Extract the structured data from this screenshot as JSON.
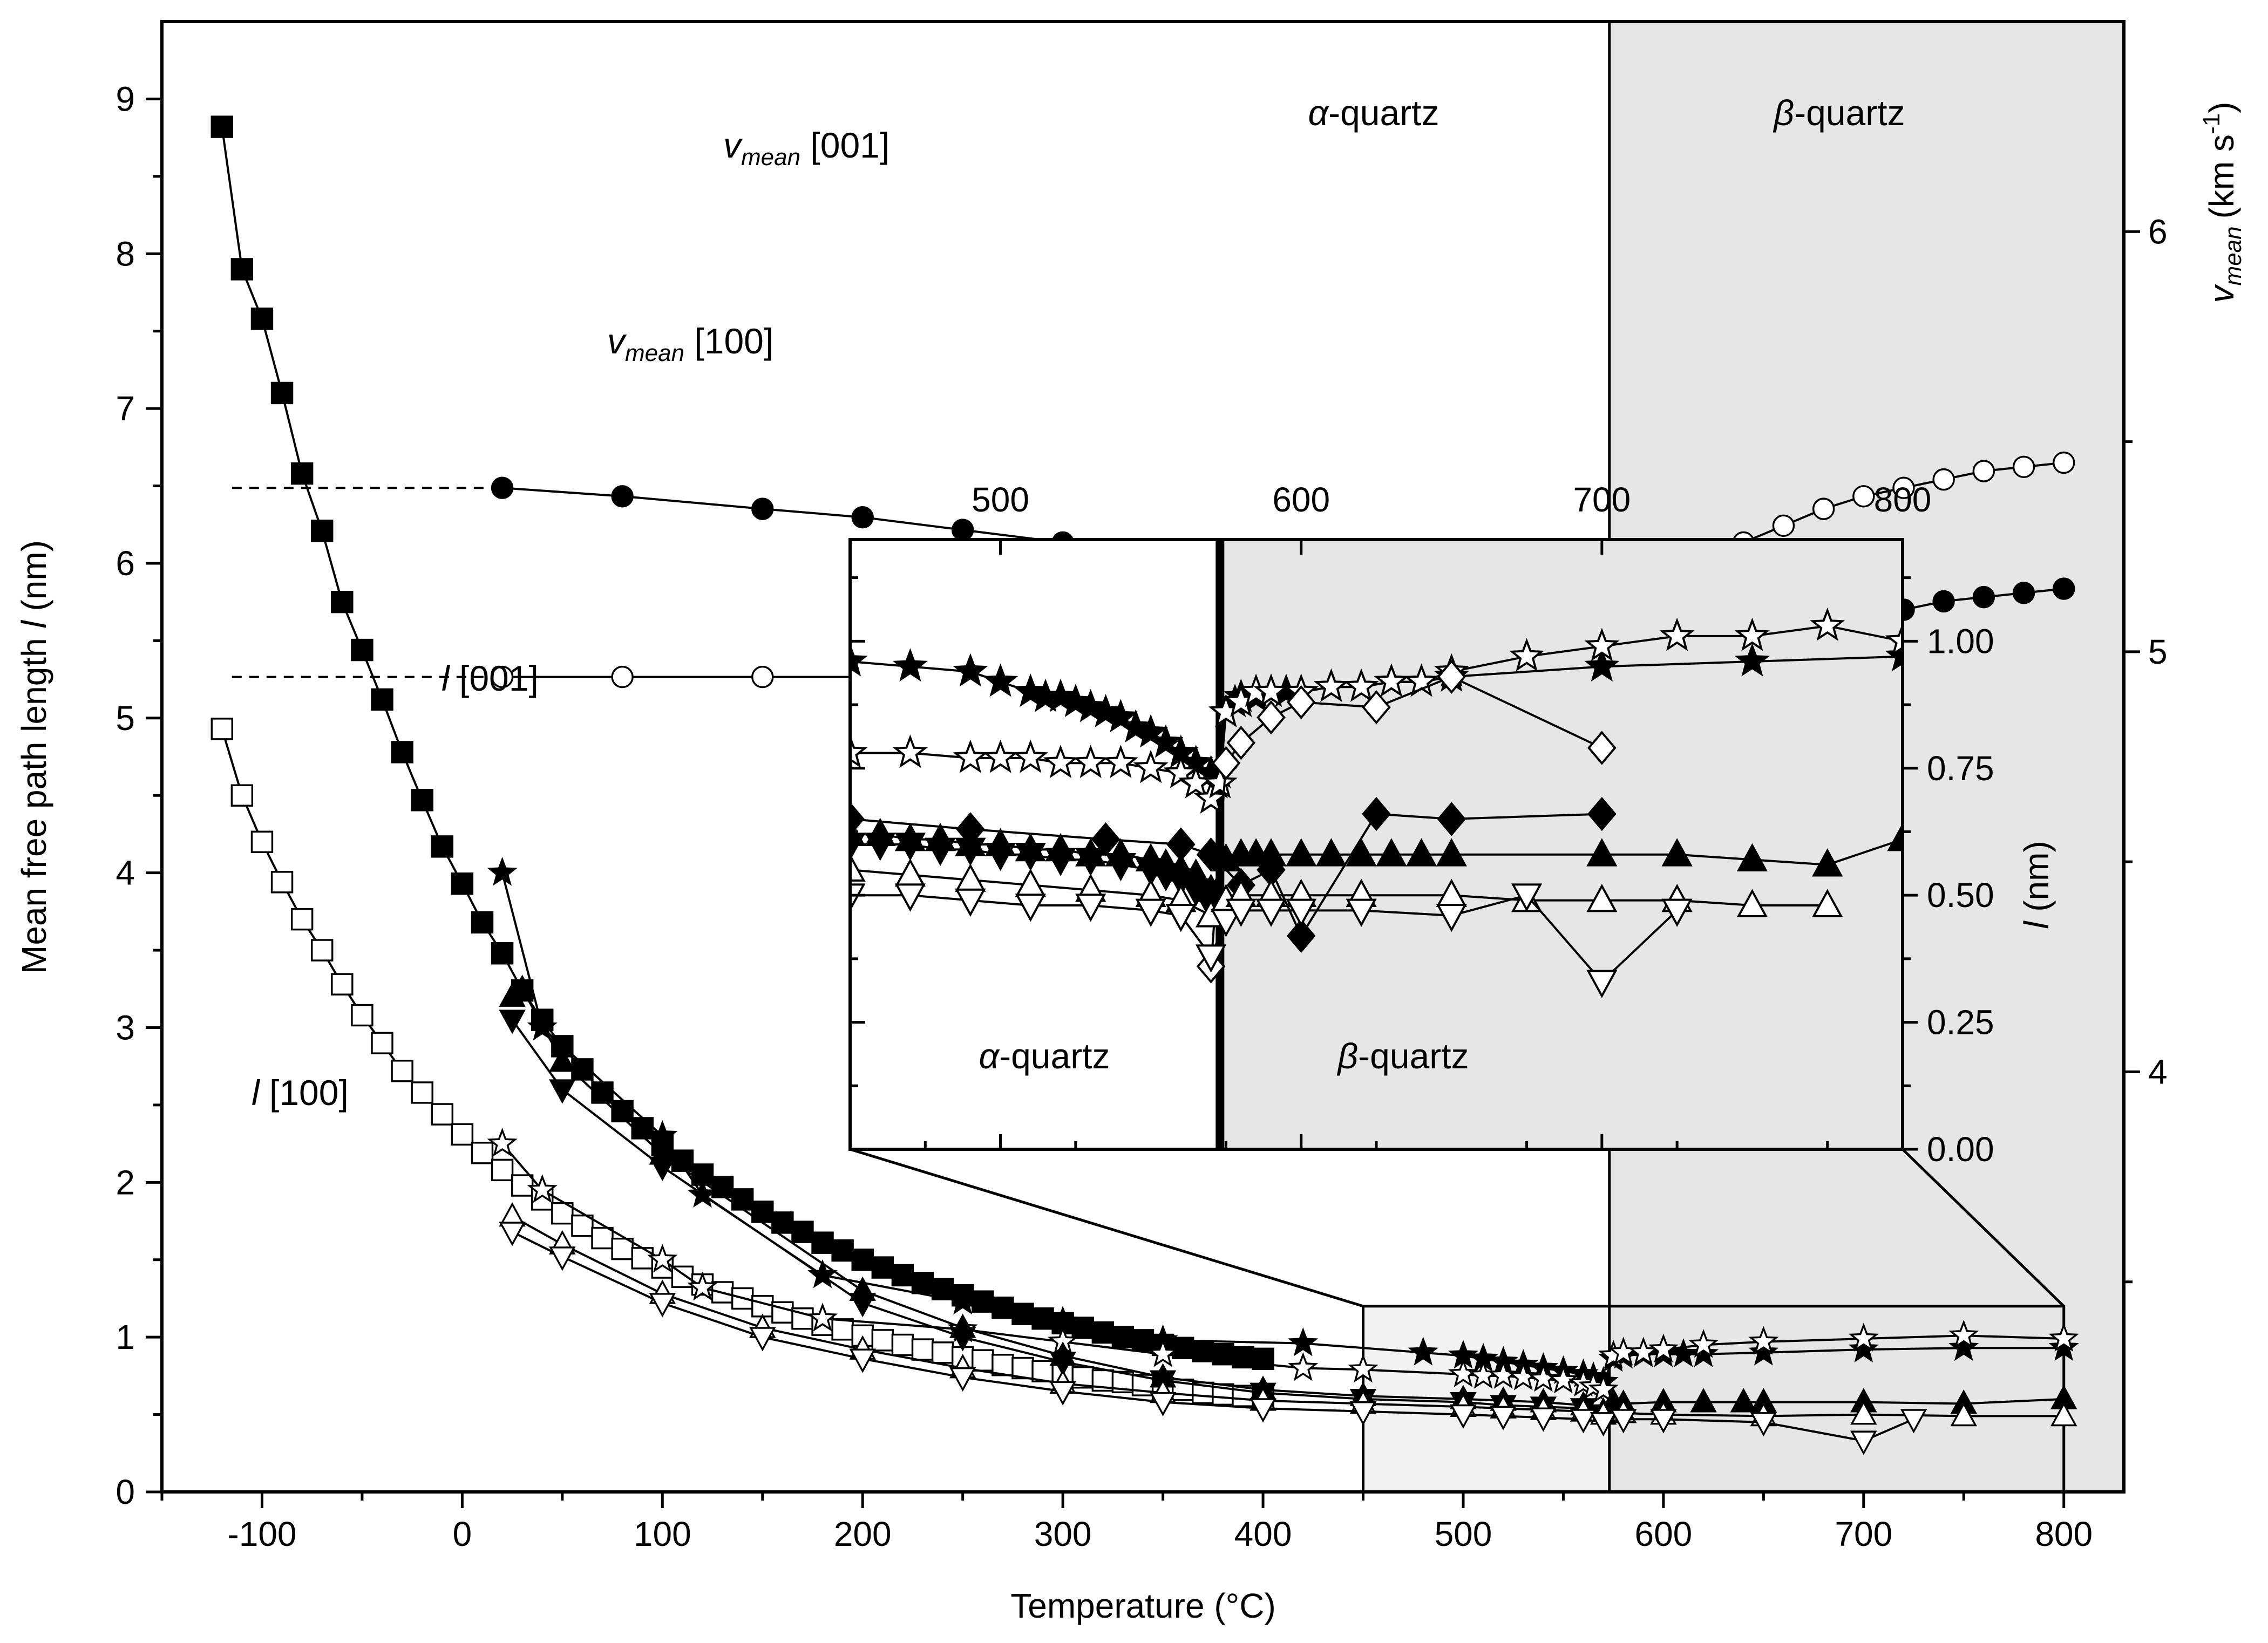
{
  "chart_data": {
    "type": "scatter",
    "xlabel": "Temperature (°C)",
    "ylabel_prefix": "Mean free path length ",
    "ylabel_symbol": "l",
    "ylabel_suffix": " (nm)",
    "y2label_symbol": "v",
    "y2label_sub": "mean",
    "y2label_unit": "(km s",
    "y2label_sup": "-1",
    "y2label_close": ")",
    "xlim": [
      -150,
      830
    ],
    "ylim": [
      0,
      9.5
    ],
    "y2lim": [
      3.0,
      6.5
    ],
    "xticks": [
      -100,
      0,
      100,
      200,
      300,
      400,
      500,
      600,
      700,
      800
    ],
    "xtick_labels": [
      "-100",
      "0",
      "100",
      "200",
      "300",
      "400",
      "500",
      "600",
      "700",
      "800"
    ],
    "yticks": [
      0,
      1,
      2,
      3,
      4,
      5,
      6,
      7,
      8,
      9
    ],
    "ytick_labels": [
      "0",
      "1",
      "2",
      "3",
      "4",
      "5",
      "6",
      "7",
      "8",
      "9"
    ],
    "y2ticks": [
      4,
      5,
      6
    ],
    "y2tick_labels": [
      "4",
      "5",
      "6"
    ],
    "transition_temperature": 573,
    "annotations": {
      "alpha": "α",
      "beta": "β",
      "quartz": "-quartz",
      "vmean001_v": "v",
      "vmean001_sub": "mean",
      "vmean001_rest": " [001]",
      "vmean100_v": "v",
      "vmean100_sub": "mean",
      "vmean100_rest": " [100]",
      "l001_l": "l",
      "l001_rest": " [001]",
      "l100_l": "l",
      "l100_rest": " [100]"
    },
    "inset": {
      "xlim": [
        450,
        800
      ],
      "ylim": [
        0,
        1.2
      ],
      "xticks": [
        500,
        600,
        700,
        800
      ],
      "xtick_labels": [
        "500",
        "600",
        "700",
        "800"
      ],
      "yticks": [
        0,
        0.25,
        0.5,
        0.75,
        1.0
      ],
      "ytick_labels": [
        "0.00",
        "0.25",
        "0.50",
        "0.75",
        "1.00"
      ],
      "ylabel_symbol": "l",
      "ylabel_suffix": " (nm)"
    },
    "series": [
      {
        "marker": "square-filled",
        "connect": true,
        "x": [
          -120,
          -110,
          -100,
          -90,
          -80,
          -70,
          -60,
          -50,
          -40,
          -30,
          -20,
          -10,
          0,
          10,
          20,
          30,
          40,
          50,
          60,
          70,
          80,
          90,
          100,
          110,
          120,
          130,
          140,
          150,
          160,
          170,
          180,
          190,
          200,
          210,
          220,
          230,
          240,
          250,
          260,
          270,
          280,
          290,
          300,
          310,
          320,
          330,
          340,
          350,
          360,
          370,
          380,
          390,
          400
        ],
        "y": [
          8.82,
          7.9,
          7.58,
          7.1,
          6.58,
          6.21,
          5.75,
          5.44,
          5.12,
          4.78,
          4.47,
          4.17,
          3.93,
          3.68,
          3.48,
          3.24,
          3.05,
          2.88,
          2.73,
          2.58,
          2.46,
          2.35,
          2.24,
          2.14,
          2.05,
          1.97,
          1.89,
          1.81,
          1.74,
          1.68,
          1.61,
          1.56,
          1.5,
          1.45,
          1.4,
          1.35,
          1.31,
          1.27,
          1.23,
          1.19,
          1.15,
          1.12,
          1.09,
          1.06,
          1.03,
          1.0,
          0.98,
          0.95,
          0.93,
          0.91,
          0.89,
          0.87,
          0.86
        ]
      },
      {
        "marker": "square-open",
        "connect": true,
        "x": [
          -120,
          -110,
          -100,
          -90,
          -80,
          -70,
          -60,
          -50,
          -40,
          -30,
          -20,
          -10,
          0,
          10,
          20,
          30,
          40,
          50,
          60,
          70,
          80,
          90,
          100,
          110,
          120,
          130,
          140,
          150,
          160,
          170,
          180,
          190,
          200,
          210,
          220,
          230,
          240,
          250,
          260,
          270,
          280,
          290,
          300,
          310,
          320,
          330,
          340,
          350,
          360,
          370,
          380,
          390,
          400
        ],
        "y": [
          4.93,
          4.5,
          4.2,
          3.94,
          3.7,
          3.5,
          3.28,
          3.08,
          2.9,
          2.72,
          2.58,
          2.44,
          2.31,
          2.19,
          2.08,
          1.98,
          1.89,
          1.8,
          1.72,
          1.64,
          1.57,
          1.51,
          1.45,
          1.39,
          1.34,
          1.29,
          1.25,
          1.2,
          1.16,
          1.12,
          1.08,
          1.05,
          1.01,
          0.98,
          0.95,
          0.92,
          0.9,
          0.87,
          0.85,
          0.82,
          0.8,
          0.78,
          0.76,
          0.74,
          0.72,
          0.71,
          0.69,
          0.67,
          0.66,
          0.64,
          0.63,
          0.62,
          0.61
        ]
      },
      {
        "marker": "star-filled",
        "connect": true,
        "x": [
          20,
          40,
          100,
          120,
          180,
          250,
          300,
          350,
          420,
          480,
          500,
          510,
          520,
          530,
          540,
          550,
          560,
          565,
          570,
          575,
          580,
          590,
          600,
          610,
          620,
          650,
          700,
          750,
          800
        ],
        "y": [
          4.0,
          3.0,
          2.3,
          1.92,
          1.4,
          1.23,
          1.1,
          0.98,
          0.96,
          0.9,
          0.88,
          0.86,
          0.84,
          0.82,
          0.8,
          0.78,
          0.76,
          0.74,
          0.71,
          0.86,
          0.88,
          0.89,
          0.89,
          0.89,
          0.89,
          0.9,
          0.92,
          0.93,
          0.93
        ]
      },
      {
        "marker": "star-open",
        "connect": true,
        "x": [
          20,
          40,
          100,
          120,
          180,
          250,
          300,
          350,
          420,
          450,
          500,
          510,
          520,
          530,
          540,
          550,
          560,
          565,
          570,
          575,
          580,
          590,
          600,
          620,
          650,
          700,
          750,
          800
        ],
        "y": [
          2.25,
          1.95,
          1.5,
          1.32,
          1.12,
          1.05,
          0.97,
          0.89,
          0.8,
          0.79,
          0.76,
          0.75,
          0.75,
          0.74,
          0.73,
          0.72,
          0.7,
          0.68,
          0.66,
          0.88,
          0.9,
          0.9,
          0.92,
          0.95,
          0.97,
          0.99,
          1.01,
          0.99
        ]
      },
      {
        "marker": "triangle-up-filled",
        "connect": true,
        "x": [
          25,
          30,
          50,
          100,
          200,
          250,
          300,
          350,
          400,
          450,
          500,
          520,
          540,
          560,
          570,
          575,
          580,
          600,
          620,
          640,
          650,
          700,
          750,
          800
        ],
        "y": [
          3.2,
          3.25,
          2.78,
          2.18,
          1.3,
          1.06,
          0.88,
          0.74,
          0.66,
          0.62,
          0.6,
          0.59,
          0.58,
          0.56,
          0.52,
          0.58,
          0.57,
          0.58,
          0.58,
          0.58,
          0.58,
          0.58,
          0.57,
          0.6
        ]
      },
      {
        "marker": "triangle-down-filled",
        "connect": true,
        "x": [
          25,
          50,
          100,
          200,
          250,
          300,
          350,
          400,
          450,
          500,
          520,
          540,
          560,
          570
        ],
        "y": [
          3.05,
          2.6,
          2.1,
          1.22,
          1.0,
          0.84,
          0.72,
          0.64,
          0.6,
          0.58,
          0.56,
          0.55,
          0.54,
          0.5
        ]
      },
      {
        "marker": "triangle-up-open",
        "connect": true,
        "x": [
          25,
          50,
          100,
          150,
          200,
          250,
          300,
          350,
          400,
          450,
          500,
          520,
          540,
          560,
          570,
          580,
          600,
          650,
          700,
          750,
          800
        ],
        "y": [
          1.78,
          1.6,
          1.28,
          1.06,
          0.92,
          0.8,
          0.7,
          0.64,
          0.59,
          0.57,
          0.55,
          0.54,
          0.53,
          0.52,
          0.5,
          0.51,
          0.5,
          0.49,
          0.5,
          0.49,
          0.49
        ]
      },
      {
        "marker": "triangle-down-open",
        "connect": true,
        "x": [
          25,
          50,
          100,
          150,
          200,
          250,
          300,
          350,
          400,
          450,
          500,
          520,
          540,
          560,
          570,
          580,
          600,
          650,
          700,
          725
        ],
        "y": [
          1.68,
          1.52,
          1.22,
          1.0,
          0.86,
          0.74,
          0.65,
          0.58,
          0.54,
          0.52,
          0.5,
          0.49,
          0.48,
          0.47,
          0.45,
          0.47,
          0.47,
          0.45,
          0.33,
          0.47
        ]
      },
      {
        "marker": "circle-filled",
        "axis": "y2",
        "connect": true,
        "x": [
          20,
          80,
          150,
          200,
          250,
          300,
          350,
          400,
          450,
          500,
          510,
          520,
          530,
          540,
          550,
          560,
          565,
          570,
          575,
          580,
          590,
          600,
          620,
          640,
          660,
          680,
          700,
          720,
          740,
          760,
          780,
          800
        ],
        "y": [
          5.39,
          5.37,
          5.34,
          5.32,
          5.29,
          5.26,
          5.22,
          5.17,
          5.1,
          5.04,
          5.01,
          4.98,
          4.95,
          4.91,
          4.87,
          4.8,
          4.73,
          4.62,
          4.68,
          4.8,
          4.88,
          4.93,
          4.98,
          5.01,
          5.04,
          5.06,
          5.08,
          5.1,
          5.12,
          5.13,
          5.14,
          5.15
        ]
      },
      {
        "marker": "circle-open",
        "axis": "y2",
        "connect": true,
        "x": [
          20,
          80,
          150,
          200,
          250,
          300,
          350,
          400,
          450,
          480,
          500,
          510,
          520,
          530,
          540,
          550,
          555,
          560,
          565,
          570,
          575,
          578,
          582,
          590,
          600,
          620,
          640,
          660,
          680,
          700,
          720,
          740,
          760,
          780,
          800
        ],
        "y": [
          4.94,
          4.94,
          4.94,
          4.94,
          4.93,
          4.92,
          4.91,
          4.9,
          4.88,
          4.86,
          4.84,
          4.83,
          4.81,
          4.8,
          4.78,
          4.76,
          4.74,
          4.72,
          4.69,
          4.6,
          4.84,
          4.93,
          5.0,
          5.06,
          5.12,
          5.2,
          5.26,
          5.3,
          5.34,
          5.37,
          5.39,
          5.41,
          5.43,
          5.44,
          5.45
        ]
      }
    ],
    "inset_series": [
      {
        "marker": "star-filled",
        "connect": true,
        "x": [
          450,
          470,
          490,
          500,
          510,
          515,
          520,
          525,
          530,
          535,
          540,
          545,
          550,
          555,
          560,
          565,
          570,
          572,
          573,
          575,
          578,
          580,
          585,
          590,
          595,
          600,
          610,
          620,
          630,
          640,
          650,
          700,
          750,
          800
        ],
        "y": [
          0.96,
          0.95,
          0.94,
          0.92,
          0.9,
          0.89,
          0.89,
          0.88,
          0.87,
          0.86,
          0.85,
          0.83,
          0.82,
          0.8,
          0.78,
          0.76,
          0.74,
          0.72,
          0.74,
          0.86,
          0.88,
          0.89,
          0.89,
          0.9,
          0.9,
          0.9,
          0.91,
          0.91,
          0.92,
          0.92,
          0.93,
          0.95,
          0.96,
          0.97
        ]
      },
      {
        "marker": "star-open",
        "connect": true,
        "x": [
          450,
          470,
          490,
          500,
          510,
          520,
          530,
          540,
          550,
          560,
          565,
          570,
          573,
          575,
          580,
          585,
          590,
          600,
          610,
          620,
          630,
          640,
          650,
          675,
          700,
          725,
          750,
          775,
          800
        ],
        "y": [
          0.78,
          0.78,
          0.77,
          0.77,
          0.77,
          0.76,
          0.76,
          0.76,
          0.75,
          0.74,
          0.72,
          0.69,
          0.72,
          0.86,
          0.88,
          0.9,
          0.9,
          0.9,
          0.91,
          0.91,
          0.92,
          0.92,
          0.94,
          0.97,
          0.99,
          1.01,
          1.01,
          1.03,
          1.0
        ]
      },
      {
        "marker": "diamond-open",
        "connect": true,
        "x": [
          570,
          575,
          580,
          590,
          600,
          625,
          650,
          700
        ],
        "y": [
          0.36,
          0.76,
          0.8,
          0.85,
          0.88,
          0.87,
          0.93,
          0.79
        ]
      },
      {
        "marker": "diamond-filled",
        "connect": true,
        "x": [
          450,
          490,
          535,
          560,
          570,
          580,
          590,
          600,
          625,
          650,
          700
        ],
        "y": [
          0.65,
          0.63,
          0.61,
          0.6,
          0.58,
          0.52,
          0.55,
          0.42,
          0.66,
          0.65,
          0.66
        ]
      },
      {
        "marker": "triangle-up-filled",
        "connect": true,
        "x": [
          450,
          460,
          470,
          480,
          490,
          500,
          510,
          520,
          530,
          540,
          550,
          555,
          560,
          565,
          570,
          575,
          580,
          585,
          590,
          600,
          610,
          620,
          630,
          640,
          650,
          700,
          725,
          750,
          775,
          800
        ],
        "y": [
          0.62,
          0.62,
          0.61,
          0.61,
          0.6,
          0.6,
          0.59,
          0.59,
          0.58,
          0.58,
          0.57,
          0.56,
          0.55,
          0.54,
          0.51,
          0.57,
          0.58,
          0.58,
          0.58,
          0.58,
          0.58,
          0.58,
          0.58,
          0.58,
          0.58,
          0.58,
          0.58,
          0.57,
          0.56,
          0.61
        ]
      },
      {
        "marker": "triangle-down-filled",
        "connect": true,
        "x": [
          450,
          460,
          470,
          480,
          490,
          500,
          510,
          520,
          530,
          540,
          550,
          555,
          560,
          565,
          570
        ],
        "y": [
          0.6,
          0.6,
          0.6,
          0.59,
          0.59,
          0.58,
          0.58,
          0.57,
          0.57,
          0.56,
          0.55,
          0.54,
          0.53,
          0.51,
          0.48
        ]
      },
      {
        "marker": "triangle-up-open",
        "connect": true,
        "x": [
          450,
          470,
          490,
          510,
          530,
          550,
          560,
          570,
          575,
          580,
          590,
          600,
          620,
          650,
          675,
          700,
          725,
          750,
          775
        ],
        "y": [
          0.55,
          0.54,
          0.53,
          0.52,
          0.51,
          0.5,
          0.49,
          0.46,
          0.49,
          0.5,
          0.5,
          0.5,
          0.5,
          0.5,
          0.49,
          0.49,
          0.49,
          0.48,
          0.48
        ]
      },
      {
        "marker": "triangle-down-open",
        "connect": true,
        "x": [
          450,
          470,
          490,
          510,
          530,
          550,
          560,
          570,
          575,
          580,
          590,
          600,
          620,
          650,
          675,
          700,
          725
        ],
        "y": [
          0.5,
          0.5,
          0.49,
          0.48,
          0.48,
          0.47,
          0.46,
          0.38,
          0.45,
          0.47,
          0.47,
          0.47,
          0.47,
          0.46,
          0.5,
          0.33,
          0.47
        ]
      }
    ]
  }
}
